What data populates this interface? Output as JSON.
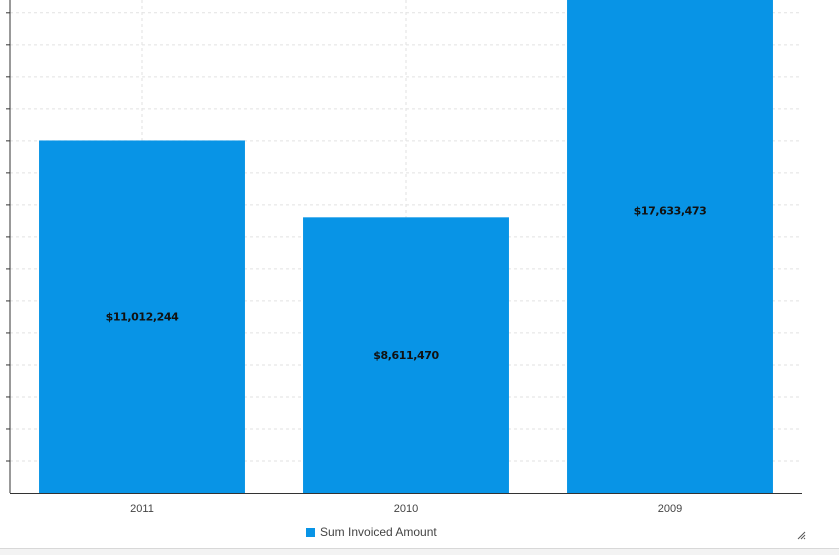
{
  "chart_data": {
    "type": "bar",
    "categories": [
      "2011",
      "2010",
      "2009"
    ],
    "series": [
      {
        "name": "Sum Invoiced Amount",
        "values": [
          11012244,
          8611470,
          17633473
        ],
        "data_labels": [
          "$11,012,244",
          "$8,611,470",
          "$17,633,473"
        ],
        "color": "#0894e6"
      }
    ],
    "ylim": [
      0,
      15400000
    ],
    "grid": true,
    "legend_position": "bottom-center"
  }
}
